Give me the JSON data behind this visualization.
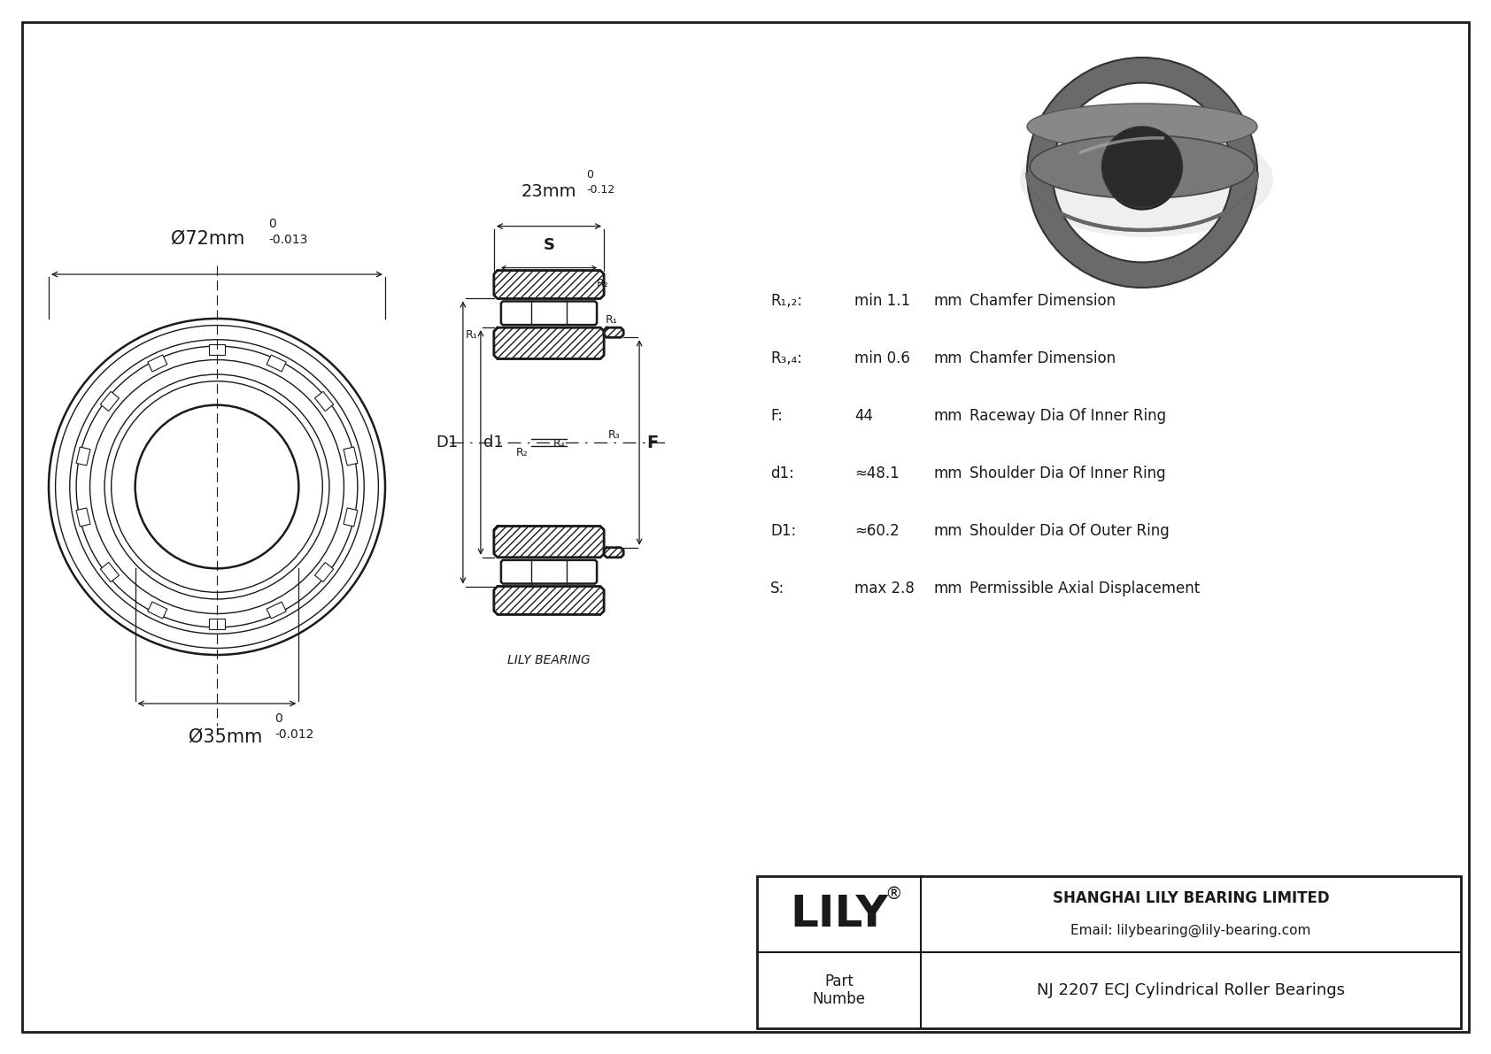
{
  "bg_color": "#ffffff",
  "line_color": "#1a1a1a",
  "outer_diameter_label": "Ø72mm",
  "outer_diameter_tol_upper": "0",
  "outer_diameter_tol_lower": "-0.013",
  "inner_diameter_label": "Ø35mm",
  "inner_diameter_tol_upper": "0",
  "inner_diameter_tol_lower": "-0.012",
  "width_label": "23mm",
  "width_tol_upper": "0",
  "width_tol_lower": "-0.12",
  "spec_rows": [
    {
      "param": "R₁,₂:",
      "value": "min 1.1",
      "unit": "mm",
      "desc": "Chamfer Dimension"
    },
    {
      "param": "R₃,₄:",
      "value": "min 0.6",
      "unit": "mm",
      "desc": "Chamfer Dimension"
    },
    {
      "param": "F:",
      "value": "44",
      "unit": "mm",
      "desc": "Raceway Dia Of Inner Ring"
    },
    {
      "param": "d1:",
      "value": "≈48.1",
      "unit": "mm",
      "desc": "Shoulder Dia Of Inner Ring"
    },
    {
      "param": "D1:",
      "value": "≈60.2",
      "unit": "mm",
      "desc": "Shoulder Dia Of Outer Ring"
    },
    {
      "param": "S:",
      "value": "max 2.8",
      "unit": "mm",
      "desc": "Permissible Axial Displacement"
    }
  ],
  "company_full": "SHANGHAI LILY BEARING LIMITED",
  "company_email": "Email: lilybearing@lily-bearing.com",
  "part_label": "Part\nNumbe",
  "part_number": "NJ 2207 ECJ Cylindrical Roller Bearings",
  "lily_bearing_label": "LILY BEARING"
}
